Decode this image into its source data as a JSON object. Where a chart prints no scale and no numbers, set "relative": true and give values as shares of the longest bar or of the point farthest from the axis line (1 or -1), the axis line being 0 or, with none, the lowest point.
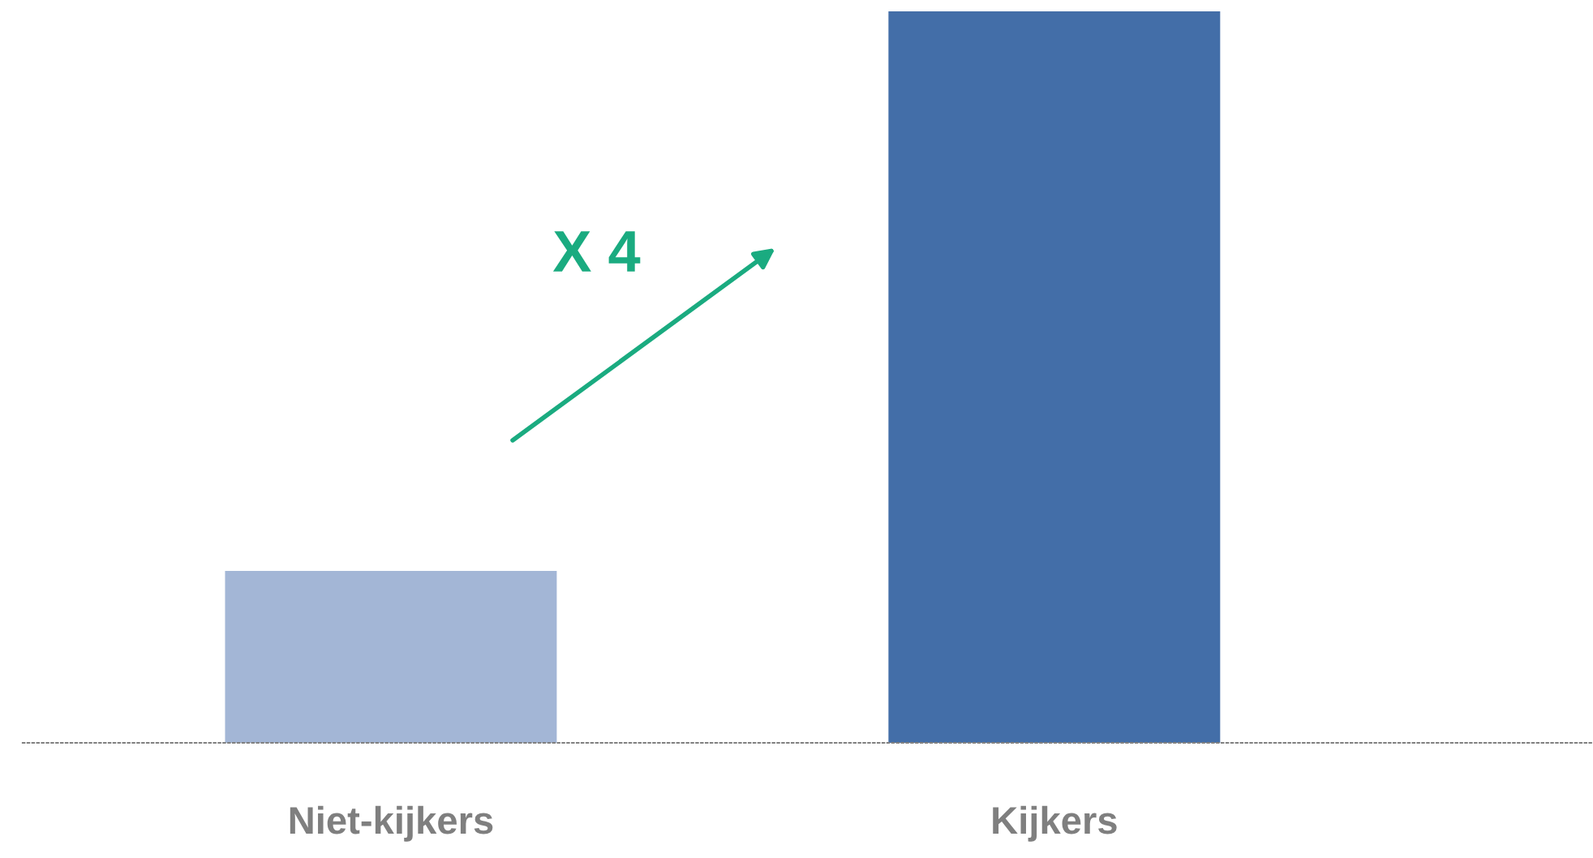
{
  "chart_data": {
    "type": "bar",
    "relative": true,
    "categories": [
      "Niet-kijkers",
      "Kijkers"
    ],
    "values": [
      0.235,
      1
    ],
    "colors": [
      "#a3b6d6",
      "#436ea8"
    ],
    "annotations": [
      "X 4"
    ],
    "grid": false,
    "legend": false
  }
}
